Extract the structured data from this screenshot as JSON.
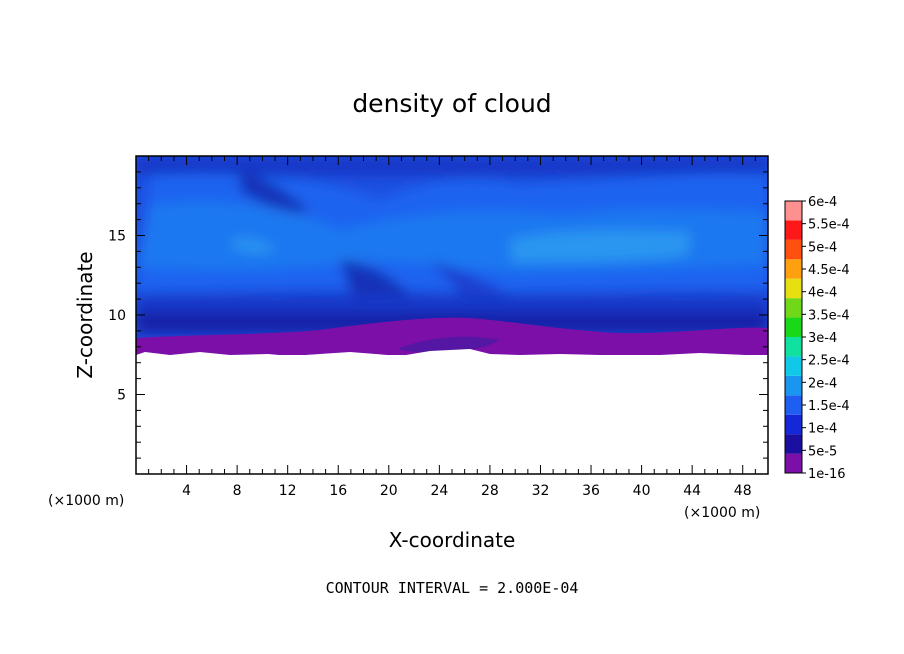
{
  "chart_data": {
    "type": "heatmap",
    "title": "density of cloud",
    "xlabel": "X-coordinate",
    "ylabel": "Z-coordinate",
    "x_unit_left": "(×1000 m)",
    "x_unit_right": "(×1000 m)",
    "xlim": [
      0,
      50
    ],
    "ylim": [
      0,
      20
    ],
    "x_ticks": [
      4,
      8,
      12,
      16,
      20,
      24,
      28,
      32,
      36,
      40,
      44,
      48
    ],
    "y_ticks": [
      5,
      10,
      15
    ],
    "colorbar": {
      "labels": [
        "6e-4",
        "5.5e-4",
        "5e-4",
        "4.5e-4",
        "4e-4",
        "3.5e-4",
        "3e-4",
        "2.5e-4",
        "2e-4",
        "1.5e-4",
        "1e-4",
        "5e-5",
        "1e-16"
      ],
      "colors": [
        "#7b0fa8",
        "#1a0fa0",
        "#1428d8",
        "#1e5ef0",
        "#1896f0",
        "#10c8e8",
        "#10e0a0",
        "#18d818",
        "#70d818",
        "#e6e010",
        "#ffa010",
        "#ff5010",
        "#ff1818",
        "#ff9090"
      ]
    },
    "ground_height": 7.4,
    "footnote": "CONTOUR INTERVAL = 2.000E-04"
  }
}
